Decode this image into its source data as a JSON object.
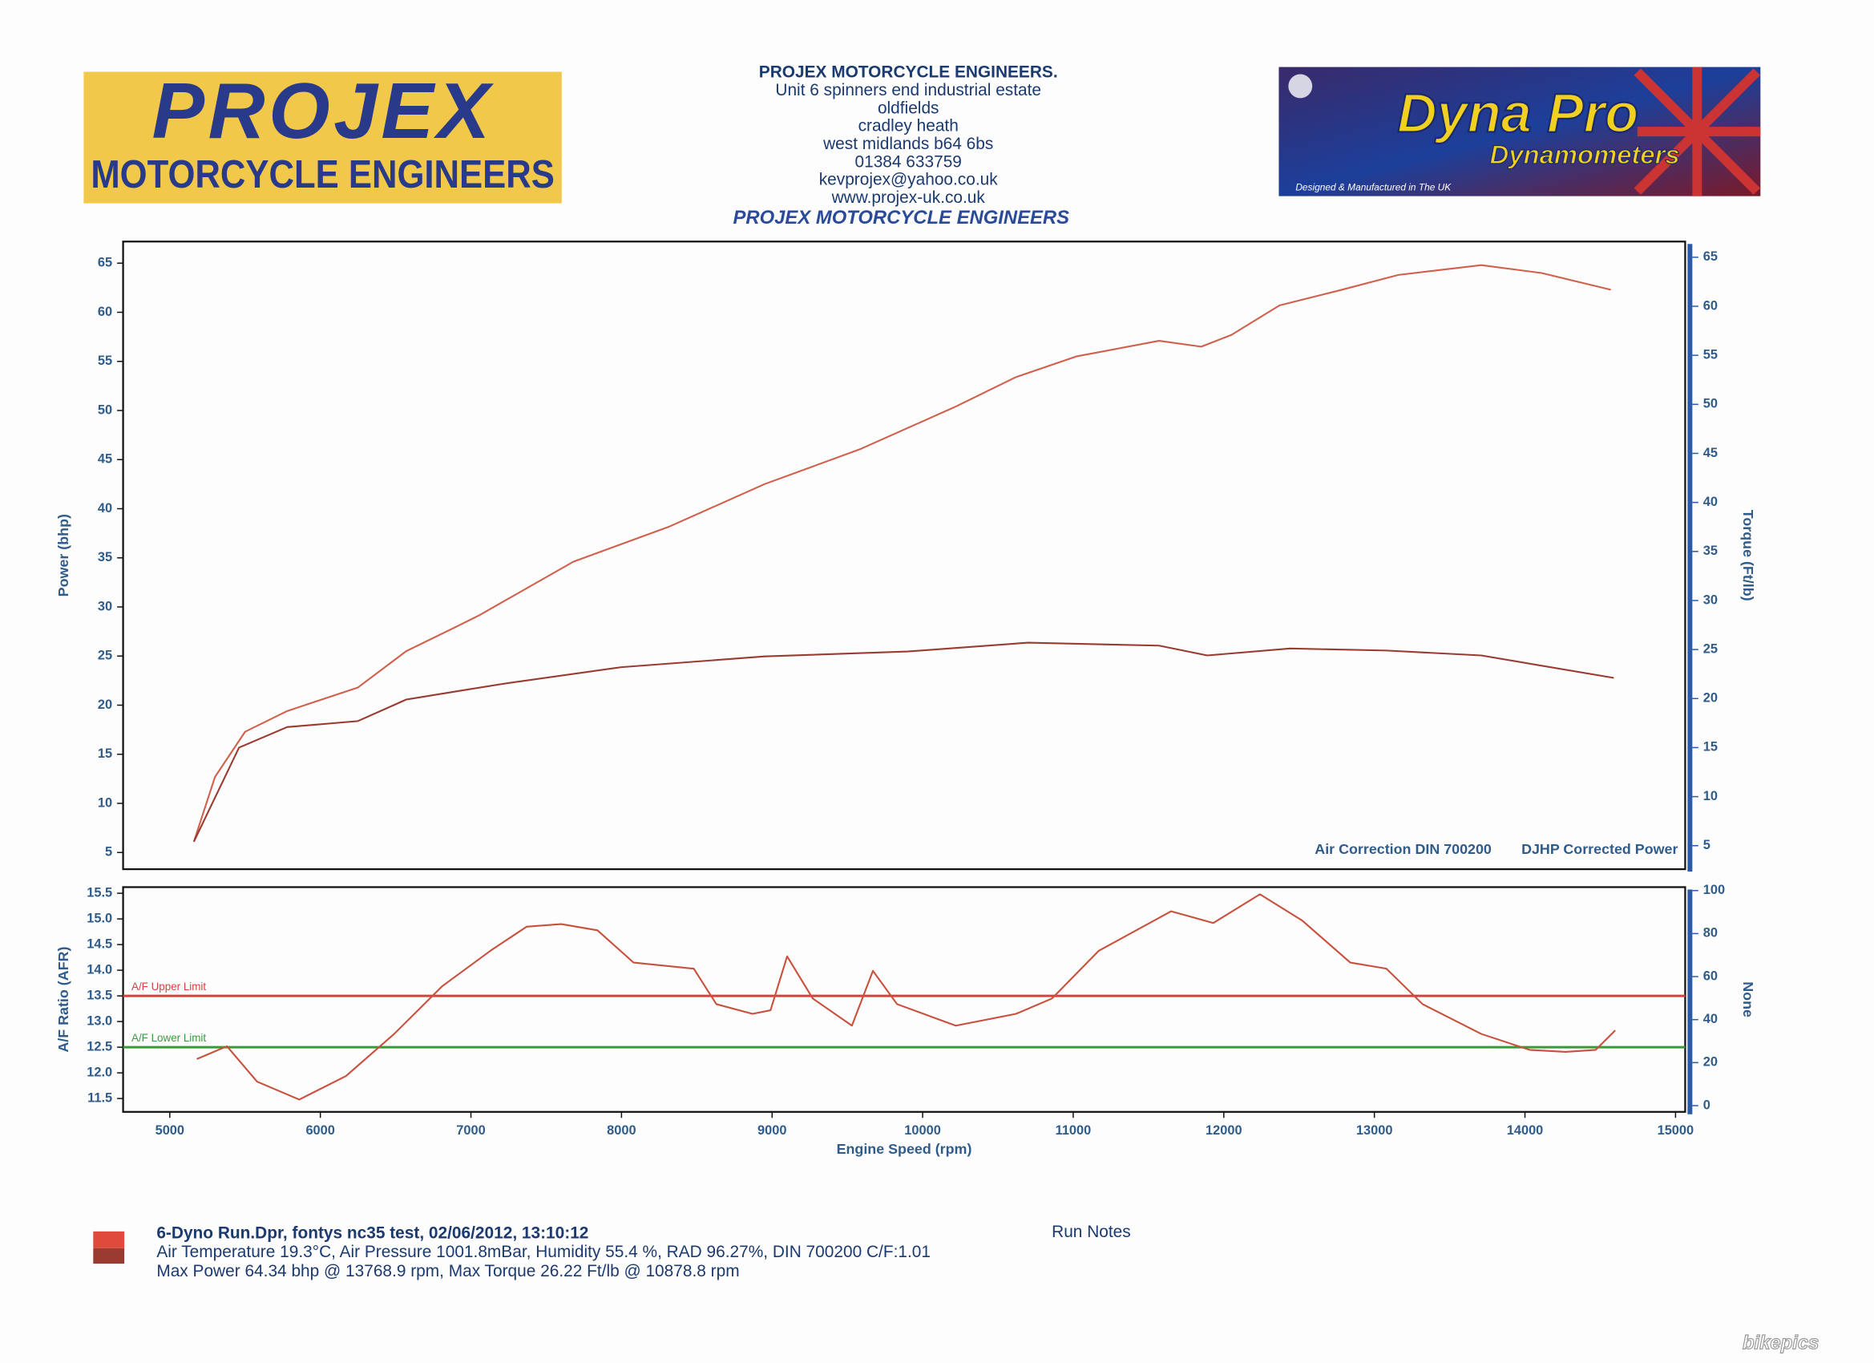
{
  "header": {
    "logo_left": {
      "title": "PROJEX",
      "subtitle": "MOTORCYCLE ENGINEERS"
    },
    "address": [
      "PROJEX MOTORCYCLE ENGINEERS.",
      "Unit 6 spinners end industrial estate",
      "oldfields",
      "cradley heath",
      "west midlands  b64 6bs",
      "01384 633759",
      "kevprojex@yahoo.co.uk",
      "www.projex-uk.co.uk"
    ],
    "heading": "PROJEX MOTORCYCLE ENGINEERS",
    "logo_right": {
      "title": "Dyna Pro",
      "subtitle": "Dynamometers",
      "note": "Designed & Manufactured in The UK"
    }
  },
  "chart_data": [
    {
      "type": "line",
      "ylabel": "Power (bhp)",
      "y2label": "Torque (Ft/lb)",
      "annotations": [
        "Air Correction DIN 700200",
        "DJHP Corrected Power"
      ],
      "xlim": [
        4690,
        15064
      ],
      "ylim": [
        3.3,
        67.2
      ],
      "yticks": [
        5,
        10,
        15,
        20,
        25,
        30,
        35,
        40,
        45,
        50,
        55,
        60,
        65
      ],
      "y2lim": [
        2.6,
        66.6
      ],
      "y2ticks": [
        5,
        10,
        15,
        20,
        25,
        30,
        35,
        40,
        45,
        50,
        55,
        60,
        65
      ],
      "series": [
        {
          "color": "#d0604c",
          "x": [
            5160,
            5300,
            5500,
            5780,
            6250,
            6570,
            6890,
            7050,
            7680,
            8320,
            8950,
            9590,
            10220,
            10620,
            11020,
            11570,
            11850,
            12050,
            12370,
            12760,
            13160,
            13710,
            14110,
            14570
          ],
          "values": [
            6.1,
            12.7,
            17.3,
            19.4,
            21.8,
            25.5,
            27.9,
            29.1,
            34.6,
            38.2,
            42.5,
            46.1,
            50.4,
            53.4,
            55.5,
            57.1,
            56.5,
            57.7,
            60.7,
            62.2,
            63.8,
            64.8,
            64.0,
            62.3
          ]
        },
        {
          "color": "#9a3a30",
          "axis": "y2",
          "x": [
            5160,
            5460,
            5780,
            6250,
            6570,
            6890,
            7210,
            8000,
            8950,
            9900,
            10700,
            11570,
            11890,
            12440,
            13080,
            13710,
            14590
          ],
          "values": [
            5.4,
            15.0,
            17.1,
            17.7,
            19.9,
            20.7,
            21.5,
            23.2,
            24.3,
            24.8,
            25.7,
            25.4,
            24.4,
            25.1,
            24.9,
            24.4,
            22.1
          ]
        }
      ]
    },
    {
      "type": "line",
      "ylabel": "A/F Ratio (AFR)",
      "y2label": "None",
      "xlabel": "Engine Speed (rpm)",
      "xlim": [
        4690,
        15064
      ],
      "xticks": [
        5000,
        6000,
        7000,
        8000,
        9000,
        10000,
        11000,
        12000,
        13000,
        14000,
        15000
      ],
      "ylim": [
        11.24,
        15.62
      ],
      "yticks": [
        11.5,
        {
          "value": 12,
          "label": "12.0"
        },
        12.5,
        {
          "value": 13,
          "label": "13.0"
        },
        13.5,
        {
          "value": 14,
          "label": "14.0"
        },
        14.5,
        {
          "value": 15,
          "label": "15.0"
        },
        15.5
      ],
      "y2lim": [
        -2.9,
        101.6
      ],
      "y2ticks": [
        0,
        20,
        40,
        60,
        80,
        100
      ],
      "limits": [
        {
          "label": "A/F Upper Limit",
          "value": 13.5,
          "color": "#d84040"
        },
        {
          "label": "A/F Lower Limit",
          "value": 12.5,
          "color": "#3a9a3a"
        }
      ],
      "series": [
        {
          "color": "#c8503c",
          "x": [
            5180,
            5380,
            5580,
            5860,
            6170,
            6490,
            6810,
            7130,
            7370,
            7600,
            7840,
            8080,
            8480,
            8630,
            8870,
            8990,
            9100,
            9270,
            9530,
            9670,
            9830,
            10220,
            10620,
            10860,
            11170,
            11650,
            11930,
            12240,
            12520,
            12840,
            13080,
            13320,
            13710,
            14030,
            14270,
            14470,
            14600
          ],
          "values": [
            12.27,
            12.52,
            11.83,
            11.48,
            11.94,
            12.76,
            13.69,
            14.38,
            14.85,
            14.9,
            14.78,
            14.15,
            14.03,
            13.34,
            13.15,
            13.22,
            14.27,
            13.45,
            12.92,
            13.99,
            13.34,
            12.92,
            13.15,
            13.45,
            14.38,
            15.15,
            14.92,
            15.48,
            14.97,
            14.15,
            14.03,
            13.34,
            12.76,
            12.45,
            12.41,
            12.45,
            12.83
          ]
        }
      ]
    }
  ],
  "footer": {
    "lines": [
      "6-Dyno Run.Dpr,   fontys nc35 test,   02/06/2012,   13:10:12",
      "Air Temperature 19.3°C, Air Pressure 1001.8mBar, Humidity 55.4 %, RAD 96.27%,   DIN 700200  C/F:1.01",
      "Max Power 64.34 bhp @ 13768.9 rpm, Max Torque 26.22 Ft/lb @ 10878.8 rpm"
    ],
    "notes": "Run Notes",
    "watermark": "bikepics"
  }
}
